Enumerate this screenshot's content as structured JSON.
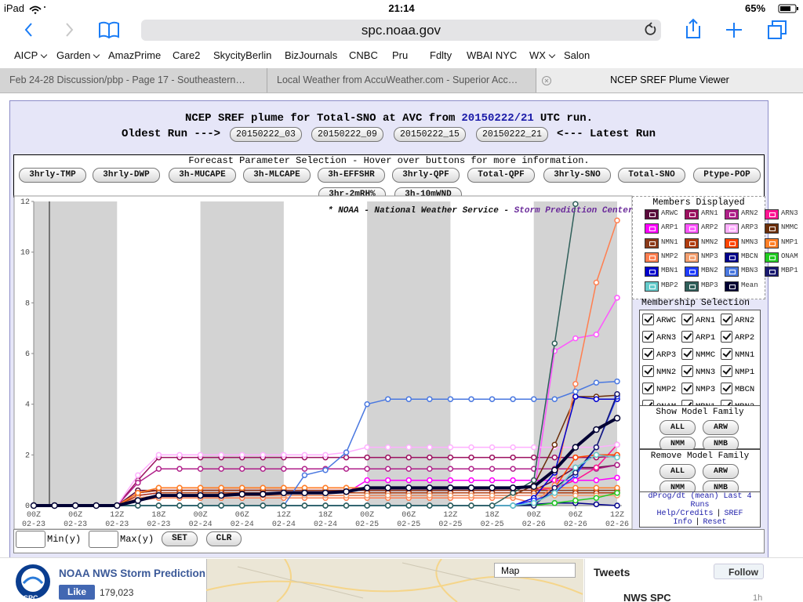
{
  "status_bar": {
    "device": "iPad",
    "time": "21:14",
    "battery": "65%"
  },
  "browser": {
    "url": "spc.noaa.gov",
    "bookmarks": [
      "AICP",
      "Garden",
      "AmazPrime",
      "Care2",
      "SkycityBerlin",
      "BizJournals",
      "CNBC",
      "Pru",
      "Fdlty",
      "WBAI NYC",
      "WX",
      "Salon"
    ],
    "tabs": [
      "Feb 24-28 Discussion/pbp - Page 17 - Southeastern…",
      "Local Weather from AccuWeather.com - Superior Acc…",
      "NCEP SREF Plume Viewer"
    ]
  },
  "page": {
    "title_prefix": "NCEP SREF plume for Total-SNO at AVC from",
    "run": "20150222/21",
    "title_suffix": "UTC run.",
    "oldest_label": "Oldest Run --->",
    "latest_label": "<--- Latest Run",
    "runs": [
      "20150222_03",
      "20150222_09",
      "20150222_15",
      "20150222_21"
    ],
    "param_heading": "Forecast Parameter Selection - Hover over buttons for more information.",
    "params": [
      "3hrly-TMP",
      "3hrly-DWP",
      "3h-MUCAPE",
      "3h-MLCAPE",
      "3h-EFFSHR",
      "3hrly-QPF",
      "Total-QPF",
      "3hrly-SNO",
      "Total-SNO",
      "Ptype-POP",
      "3hr-2mRH%",
      "3h-10mWND"
    ],
    "members_heading": "Members Displayed",
    "membership_heading": "Membership Selection",
    "show_family_heading": "Show Model Family",
    "remove_family_heading": "Remove Model Family",
    "family_buttons": [
      "ALL",
      "ARW",
      "NMM",
      "NMB"
    ],
    "dprog_link": "dProg/dt (mean) Last 4 Runs",
    "help_link": "Help/Credits",
    "separator": "|",
    "sref_link": "SREF Info",
    "reset_link": "Reset",
    "min_label": "Min(y)",
    "max_label": "Max(y)",
    "set_button": "SET",
    "clr_button": "CLR"
  },
  "chart_data": {
    "type": "line",
    "annotation": "* NOAA - National Weather Service - ",
    "annotation_source": "Storm Prediction Center *",
    "x": [
      0,
      3,
      6,
      9,
      12,
      15,
      18,
      21,
      24,
      27,
      30,
      33,
      36,
      39,
      42,
      45,
      48,
      51,
      54,
      57,
      60,
      63,
      66,
      69,
      72,
      75,
      78,
      81,
      84
    ],
    "xlim": [
      0,
      84
    ],
    "xticks": [
      {
        "value": 0,
        "label": "00Z"
      },
      {
        "value": 6,
        "label": "06Z"
      },
      {
        "value": 12,
        "label": "12Z"
      },
      {
        "value": 18,
        "label": "18Z"
      },
      {
        "value": 24,
        "label": "00Z"
      },
      {
        "value": 30,
        "label": "06Z"
      },
      {
        "value": 36,
        "label": "12Z"
      },
      {
        "value": 42,
        "label": "18Z"
      },
      {
        "value": 48,
        "label": "00Z"
      },
      {
        "value": 54,
        "label": "06Z"
      },
      {
        "value": 60,
        "label": "12Z"
      },
      {
        "value": 66,
        "label": "18Z"
      },
      {
        "value": 72,
        "label": "00Z"
      },
      {
        "value": 78,
        "label": "06Z"
      },
      {
        "value": 84,
        "label": "12Z"
      }
    ],
    "xtick_dates": [
      "02-23",
      "02-23",
      "02-23",
      "02-23",
      "02-24",
      "02-24",
      "02-24",
      "02-24",
      "02-25",
      "02-25",
      "02-25",
      "02-25",
      "02-26",
      "02-26",
      "02-26"
    ],
    "ylim": [
      0,
      12
    ],
    "yticks": [
      0,
      2,
      4,
      6,
      8,
      10,
      12
    ],
    "shaded_ranges": [
      [
        0,
        12
      ],
      [
        24,
        36
      ],
      [
        48,
        60
      ],
      [
        72,
        84
      ]
    ],
    "series": [
      {
        "name": "ARWC",
        "color": "#5a0a3c",
        "values": [
          0,
          0,
          0,
          0,
          0,
          0.6,
          0.6,
          0.6,
          0.6,
          0.6,
          0.6,
          0.6,
          0.6,
          0.6,
          0.6,
          0.6,
          0.6,
          0.6,
          0.6,
          0.6,
          0.6,
          0.6,
          0.6,
          0.6,
          0.6,
          1.0,
          1.5,
          1.5,
          1.6
        ]
      },
      {
        "name": "ARN1",
        "color": "#9c1060",
        "values": [
          0,
          0,
          0,
          0,
          0,
          1.0,
          1.9,
          1.9,
          1.9,
          1.9,
          1.9,
          1.9,
          1.9,
          1.9,
          1.9,
          1.9,
          1.9,
          1.9,
          1.9,
          1.9,
          1.9,
          1.9,
          1.9,
          1.9,
          1.9,
          1.9,
          1.9,
          1.9,
          1.95
        ]
      },
      {
        "name": "ARN2",
        "color": "#b0208a",
        "values": [
          0,
          0,
          0,
          0,
          0,
          0.9,
          1.45,
          1.45,
          1.45,
          1.45,
          1.45,
          1.45,
          1.45,
          1.45,
          1.45,
          1.45,
          1.45,
          1.45,
          1.45,
          1.45,
          1.45,
          1.45,
          1.45,
          1.45,
          1.45,
          1.45,
          1.45,
          1.45,
          1.6
        ]
      },
      {
        "name": "ARN3",
        "color": "#ff1493",
        "values": [
          0,
          0,
          0,
          0,
          0,
          0.5,
          0.6,
          0.6,
          0.6,
          0.6,
          0.6,
          0.6,
          0.6,
          0.6,
          0.6,
          0.6,
          0.6,
          0.6,
          0.6,
          0.6,
          0.6,
          0.6,
          0.6,
          0.6,
          0.6,
          0.7,
          1.0,
          1.5,
          2.4
        ]
      },
      {
        "name": "ARP1",
        "color": "#ff00ff",
        "values": [
          0,
          0,
          0,
          0,
          0,
          0.4,
          0.5,
          0.5,
          0.5,
          0.5,
          0.5,
          0.5,
          0.5,
          0.5,
          0.5,
          0.5,
          1.0,
          1.0,
          1.0,
          1.0,
          1.0,
          1.0,
          1.0,
          1.0,
          1.0,
          1.0,
          1.0,
          1.0,
          1.1
        ]
      },
      {
        "name": "ARP2",
        "color": "#ff55ff",
        "values": [
          0,
          0,
          0,
          0,
          0,
          0.3,
          0.4,
          0.4,
          0.4,
          0.4,
          0.4,
          0.4,
          0.4,
          0.4,
          0.4,
          0.4,
          0.4,
          0.4,
          0.4,
          0.4,
          0.4,
          0.4,
          0.4,
          0.4,
          0.4,
          6.1,
          6.6,
          6.75,
          8.2
        ]
      },
      {
        "name": "ARP3",
        "color": "#ffb0ff",
        "values": [
          0,
          0,
          0,
          0,
          0,
          1.2,
          2.0,
          2.0,
          2.0,
          2.0,
          2.0,
          2.0,
          2.0,
          2.0,
          2.0,
          2.1,
          2.3,
          2.3,
          2.3,
          2.3,
          2.3,
          2.3,
          2.3,
          2.3,
          2.3,
          2.3,
          2.3,
          2.3,
          2.4
        ]
      },
      {
        "name": "NMMC",
        "color": "#6b2e0a",
        "values": [
          0,
          0,
          0,
          0,
          0,
          0.3,
          0.4,
          0.4,
          0.4,
          0.4,
          0.4,
          0.4,
          0.4,
          0.4,
          0.4,
          0.4,
          0.4,
          0.4,
          0.4,
          0.4,
          0.4,
          0.4,
          0.4,
          0.4,
          0.8,
          2.4,
          4.3,
          4.3,
          4.35
        ]
      },
      {
        "name": "NMN1",
        "color": "#8b3a1a",
        "values": [
          0,
          0,
          0,
          0,
          0,
          0.5,
          0.6,
          0.6,
          0.6,
          0.6,
          0.6,
          0.6,
          0.6,
          0.6,
          0.6,
          0.6,
          0.6,
          0.6,
          0.6,
          0.6,
          0.6,
          0.6,
          0.6,
          0.6,
          0.6,
          0.6,
          0.6,
          0.6,
          0.6
        ]
      },
      {
        "name": "NMN2",
        "color": "#b03c10",
        "values": [
          0,
          0,
          0,
          0,
          0,
          0.4,
          0.5,
          0.5,
          0.5,
          0.5,
          0.5,
          0.5,
          0.5,
          0.5,
          0.5,
          0.5,
          0.5,
          0.5,
          0.5,
          0.5,
          0.5,
          0.5,
          0.5,
          0.5,
          0.5,
          0.5,
          0.5,
          0.5,
          0.5
        ]
      },
      {
        "name": "NMN3",
        "color": "#ff4500",
        "values": [
          0,
          0,
          0,
          0,
          0,
          0.5,
          0.7,
          0.7,
          0.7,
          0.7,
          0.7,
          0.7,
          0.7,
          0.7,
          0.7,
          0.7,
          0.7,
          0.7,
          0.7,
          0.7,
          0.7,
          0.7,
          0.7,
          0.7,
          0.7,
          0.7,
          1.9,
          2.0,
          2.0
        ]
      },
      {
        "name": "NMP1",
        "color": "#ff7f27",
        "values": [
          0,
          0,
          0,
          0,
          0,
          0.5,
          0.7,
          0.7,
          0.7,
          0.7,
          0.7,
          0.7,
          0.7,
          0.7,
          0.7,
          0.7,
          0.7,
          0.7,
          0.7,
          0.7,
          0.7,
          0.7,
          0.7,
          0.7,
          0.7,
          0.7,
          0.7,
          0.7,
          0.7
        ]
      },
      {
        "name": "NMP2",
        "color": "#ff7f50",
        "values": [
          0,
          0,
          0,
          0,
          0,
          0.2,
          0.3,
          0.3,
          0.3,
          0.3,
          0.3,
          0.3,
          0.3,
          0.3,
          0.3,
          0.3,
          0.3,
          0.3,
          0.3,
          0.3,
          0.3,
          0.3,
          0.3,
          0.3,
          0.1,
          0.8,
          4.8,
          8.8,
          11.25
        ]
      },
      {
        "name": "NMP3",
        "color": "#f4a070",
        "values": [
          0,
          0,
          0,
          0,
          0,
          0.3,
          0.4,
          0.4,
          0.4,
          0.4,
          0.4,
          0.4,
          0.4,
          0.4,
          0.4,
          0.4,
          0.4,
          0.4,
          0.4,
          0.4,
          0.4,
          0.4,
          0.4,
          0.4,
          0.4,
          0.4,
          0.4,
          0.4,
          0.4
        ]
      },
      {
        "name": "MBCN",
        "color": "#00008b",
        "values": [
          0,
          0,
          0,
          0,
          0,
          0,
          0,
          0,
          0,
          0,
          0,
          0,
          0,
          0,
          0,
          0,
          0,
          0,
          0,
          0,
          0,
          0,
          0,
          0,
          0.05,
          0.1,
          0.1,
          0.05,
          0
        ]
      },
      {
        "name": "ONAM",
        "color": "#22cc22",
        "values": [
          0,
          0,
          0,
          0,
          0,
          0,
          0,
          0,
          0,
          0,
          0,
          0,
          0,
          0,
          0,
          0,
          0,
          0,
          0,
          0,
          0,
          0,
          0,
          0,
          0,
          0.1,
          0.2,
          0.3,
          0.5
        ]
      },
      {
        "name": "MBN1",
        "color": "#0000cd",
        "values": [
          0,
          0,
          0,
          0,
          0,
          0,
          0,
          0,
          0,
          0,
          0,
          0,
          0,
          0,
          0,
          0,
          0,
          0,
          0,
          0,
          0,
          0,
          0,
          0,
          0.3,
          1.3,
          4.3,
          4.2,
          4.2
        ]
      },
      {
        "name": "MBN2",
        "color": "#1e3cff",
        "values": [
          0,
          0,
          0,
          0,
          0,
          0,
          0,
          0,
          0,
          0,
          0,
          0,
          0,
          0,
          0,
          0,
          0,
          0,
          0,
          0,
          0,
          0,
          0,
          0,
          0.2,
          0.5,
          1.2,
          2.3,
          4.3
        ]
      },
      {
        "name": "MBN3",
        "color": "#4a78e0",
        "values": [
          0,
          0,
          0,
          0,
          0,
          0,
          0,
          0,
          0,
          0,
          0,
          0,
          0,
          1.2,
          1.4,
          2.1,
          4.0,
          4.2,
          4.2,
          4.2,
          4.2,
          4.2,
          4.2,
          4.2,
          4.2,
          4.2,
          4.5,
          4.85,
          4.9
        ]
      },
      {
        "name": "MBP1",
        "color": "#191970",
        "values": [
          0,
          0,
          0,
          0,
          0,
          0,
          0,
          0,
          0,
          0,
          0,
          0,
          0,
          0,
          0,
          0,
          0,
          0,
          0,
          0,
          0,
          0,
          0,
          0,
          0,
          0.7,
          1.3,
          2.3,
          4.4
        ]
      },
      {
        "name": "MBP2",
        "color": "#66cccc",
        "values": [
          0,
          0,
          0,
          0,
          0,
          0,
          0,
          0,
          0,
          0,
          0,
          0,
          0,
          0,
          0,
          0,
          0,
          0,
          0,
          0,
          0,
          0,
          0,
          0,
          0.1,
          0.5,
          1.5,
          2.0,
          1.9
        ]
      },
      {
        "name": "MBP3",
        "color": "#2f5f5a",
        "values": [
          0,
          0,
          0,
          0,
          0,
          0,
          0,
          0,
          0,
          0,
          0,
          0,
          0,
          0,
          0,
          0,
          0,
          0,
          0,
          0,
          0,
          0,
          0,
          0.5,
          1.0,
          6.4,
          11.9,
          null,
          null
        ]
      },
      {
        "name": "Mean",
        "color": "#000033",
        "values": [
          0,
          0,
          0,
          0,
          0,
          0.2,
          0.4,
          0.4,
          0.4,
          0.4,
          0.45,
          0.45,
          0.5,
          0.5,
          0.5,
          0.55,
          0.7,
          0.7,
          0.7,
          0.7,
          0.7,
          0.7,
          0.7,
          0.7,
          0.75,
          1.4,
          2.3,
          3.0,
          3.45
        ]
      }
    ]
  },
  "footer": {
    "spc_logo": "SPC",
    "page_name": "NOAA NWS Storm Prediction",
    "like": "Like",
    "likes": "179,023",
    "map": "Map",
    "tweets": "Tweets",
    "follow": "Follow",
    "account": "NWS SPC",
    "age": "1h"
  }
}
